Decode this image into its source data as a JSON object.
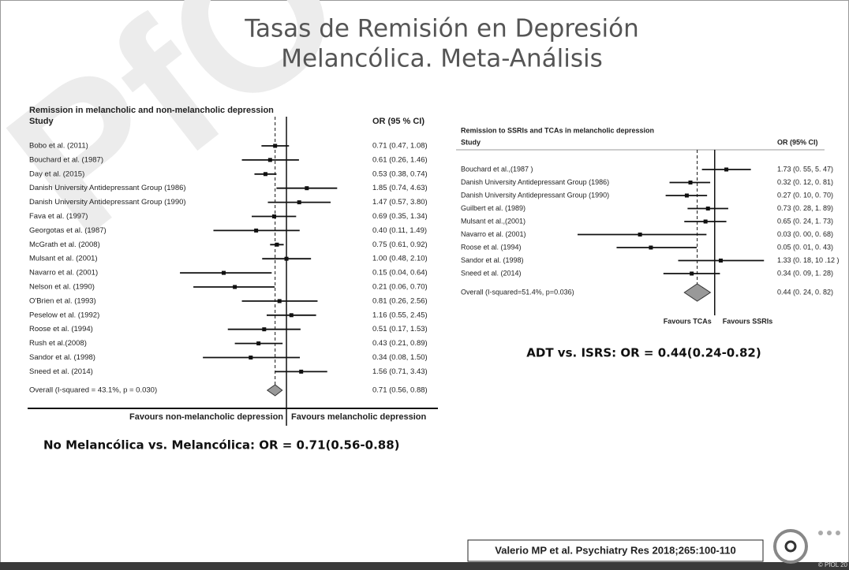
{
  "slide": {
    "watermark": "PfO",
    "title": [
      "Tasas de Remisión en Depresión",
      "Melancólica. Meta-Análisis"
    ],
    "captions": [
      "No Melancólica vs. Melancólica: OR = 0.71(0.56-0.88)",
      "ADT vs. ISRS: OR = 0.44(0.24-0.82)"
    ],
    "citation": "Valerio MP et al. Psychiatry Res 2018;265:100-110",
    "footer": "© PfOL 20"
  },
  "chart_data": [
    {
      "type": "forest",
      "title": "Remission in melancholic and non-melancholic depression",
      "column_headers": [
        "Study",
        "OR (95 % CI)"
      ],
      "categories": [
        "Bobo et al. (2011)",
        "Bouchard et al. (1987)",
        "Day et al. (2015)",
        "Danish University Antidepressant Group (1986)",
        "Danish University Antidepressant Group (1990)",
        "Fava et al. (1997)",
        "Georgotas et al. (1987)",
        "McGrath et al. (2008)",
        "Mulsant et al. (2001)",
        "Navarro et al. (2001)",
        "Nelson et al. (1990)",
        "O'Brien et al. (1993)",
        "Peselow et al. (1992)",
        "Roose et al. (1994)",
        "Rush et al.(2008)",
        "Sandor et al. (1998)",
        "Sneed et al. (2014)"
      ],
      "values": [
        0.71,
        0.61,
        0.53,
        1.85,
        1.47,
        0.69,
        0.4,
        0.75,
        1.0,
        0.15,
        0.21,
        0.81,
        1.16,
        0.51,
        0.43,
        0.34,
        1.56
      ],
      "lower": [
        0.47,
        0.26,
        0.38,
        0.74,
        0.57,
        0.35,
        0.11,
        0.61,
        0.48,
        0.04,
        0.06,
        0.26,
        0.55,
        0.17,
        0.21,
        0.08,
        0.71
      ],
      "upper": [
        1.08,
        1.46,
        0.74,
        4.63,
        3.8,
        1.34,
        1.49,
        0.92,
        2.1,
        0.64,
        0.7,
        2.56,
        2.45,
        1.53,
        0.89,
        1.5,
        3.43
      ],
      "value_labels": [
        "0.71 (0.47, 1.08)",
        "0.61 (0.26, 1.46)",
        "0.53 (0.38, 0.74)",
        "1.85 (0.74, 4.63)",
        "1.47 (0.57, 3.80)",
        "0.69 (0.35, 1.34)",
        "0.40 (0.11, 1.49)",
        "0.75 (0.61, 0.92)",
        "1.00 (0.48, 2.10)",
        "0.15 (0.04, 0.64)",
        "0.21 (0.06, 0.70)",
        "0.81 (0.26, 2.56)",
        "1.16 (0.55, 2.45)",
        "0.51 (0.17, 1.53)",
        "0.43 (0.21, 0.89)",
        "0.34 (0.08, 1.50)",
        "1.56 (0.71, 3.43)"
      ],
      "overall_label": "Overall  (I-squared = 43.1%, p = 0.030)",
      "overall_value": 0.71,
      "overall_lower": 0.56,
      "overall_upper": 0.88,
      "overall_value_label": "0.71 (0.56, 0.88)",
      "reference_line": 1,
      "favours": [
        "Favours non-melancholic depression",
        "Favours melancholic depression"
      ],
      "log_scale": true,
      "xlim": [
        0.026,
        7.06
      ],
      "color": "#111111",
      "diamond_color": "#999999"
    },
    {
      "type": "forest",
      "title": "Remission to SSRIs and TCAs in melancholic depression",
      "column_headers": [
        "Study",
        "OR (95% CI)"
      ],
      "categories": [
        "Bouchard et al.,(1987 )",
        "Danish University Antidepressant Group (1986)",
        "Danish University Antidepressant Group (1990)",
        "Guilbert et al. (1989)",
        "Mulsant et al.,(2001)",
        "Navarro et al. (2001)",
        "Roose et al. (1994)",
        "Sandor et al. (1998)",
        "Sneed et al. (2014)"
      ],
      "values": [
        1.73,
        0.32,
        0.27,
        0.73,
        0.65,
        0.03,
        0.05,
        1.33,
        0.34
      ],
      "lower": [
        0.55,
        0.12,
        0.1,
        0.28,
        0.24,
        0.0,
        0.01,
        0.18,
        0.09
      ],
      "upper": [
        5.47,
        0.81,
        0.7,
        1.89,
        1.73,
        0.68,
        0.43,
        10.12,
        1.28
      ],
      "value_labels": [
        "1.73 (0. 55, 5. 47)",
        "0.32 (0. 12, 0. 81)",
        "0.27 (0. 10, 0. 70)",
        "0.73 (0. 28, 1. 89)",
        "0.65 (0. 24, 1. 73)",
        "0.03 (0. 00, 0. 68)",
        "0.05 (0. 01, 0. 43)",
        "1.33 (0. 18, 10 .12 )",
        "0.34 (0. 09, 1. 28)"
      ],
      "overall_label": "Overall (I-squared=51.4%, p=0.036)",
      "overall_value": 0.44,
      "overall_lower": 0.24,
      "overall_upper": 0.82,
      "overall_value_label": "0.44 (0. 24, 0. 82)",
      "reference_line": 1,
      "favours": [
        "Favours TCAs",
        "Favours SSRIs"
      ],
      "log_scale": true,
      "xlim": [
        0.0016,
        13
      ],
      "color": "#111111",
      "diamond_color": "#999999"
    }
  ]
}
